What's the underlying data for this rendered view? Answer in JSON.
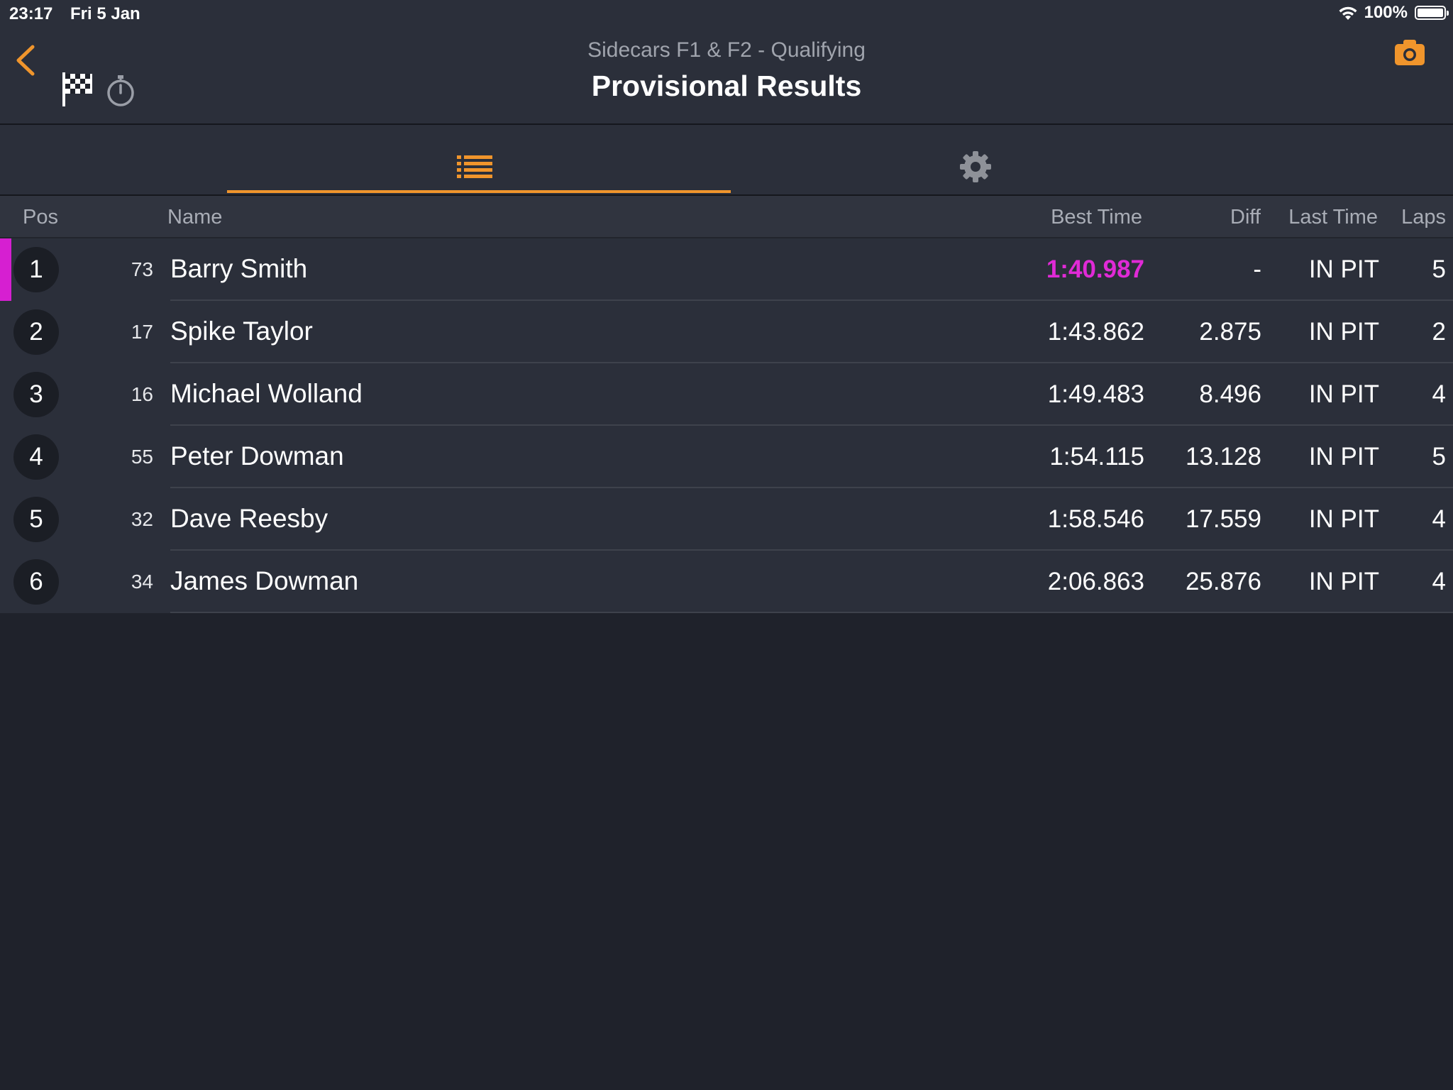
{
  "status_bar": {
    "time": "23:17",
    "date": "Fri 5 Jan",
    "battery_text": "100%"
  },
  "header": {
    "subtitle": "Sidecars F1 & F2 - Qualifying",
    "title": "Provisional Results",
    "accent_color": "#f0952c"
  },
  "tabs": [
    {
      "icon": "list-icon",
      "selected": true
    },
    {
      "icon": "gear-icon",
      "selected": false
    }
  ],
  "columns": {
    "pos": "Pos",
    "name": "Name",
    "best_time": "Best Time",
    "diff": "Diff",
    "last_time": "Last Time",
    "laps": "Laps"
  },
  "rows": [
    {
      "pos": "1",
      "number": "73",
      "name": "Barry Smith",
      "best_time": "1:40.987",
      "diff": "-",
      "last_time": "IN PIT",
      "laps": "5"
    },
    {
      "pos": "2",
      "number": "17",
      "name": "Spike Taylor",
      "best_time": "1:43.862",
      "diff": "2.875",
      "last_time": "IN PIT",
      "laps": "2"
    },
    {
      "pos": "3",
      "number": "16",
      "name": "Michael Wolland",
      "best_time": "1:49.483",
      "diff": "8.496",
      "last_time": "IN PIT",
      "laps": "4"
    },
    {
      "pos": "4",
      "number": "55",
      "name": "Peter Dowman",
      "best_time": "1:54.115",
      "diff": "13.128",
      "last_time": "IN PIT",
      "laps": "5"
    },
    {
      "pos": "5",
      "number": "32",
      "name": "Dave Reesby",
      "best_time": "1:58.546",
      "diff": "17.559",
      "last_time": "IN PIT",
      "laps": "4"
    },
    {
      "pos": "6",
      "number": "34",
      "name": "James Dowman",
      "best_time": "2:06.863",
      "diff": "25.876",
      "last_time": "IN PIT",
      "laps": "4"
    }
  ],
  "fastest_lap_color": "#e02ad6"
}
